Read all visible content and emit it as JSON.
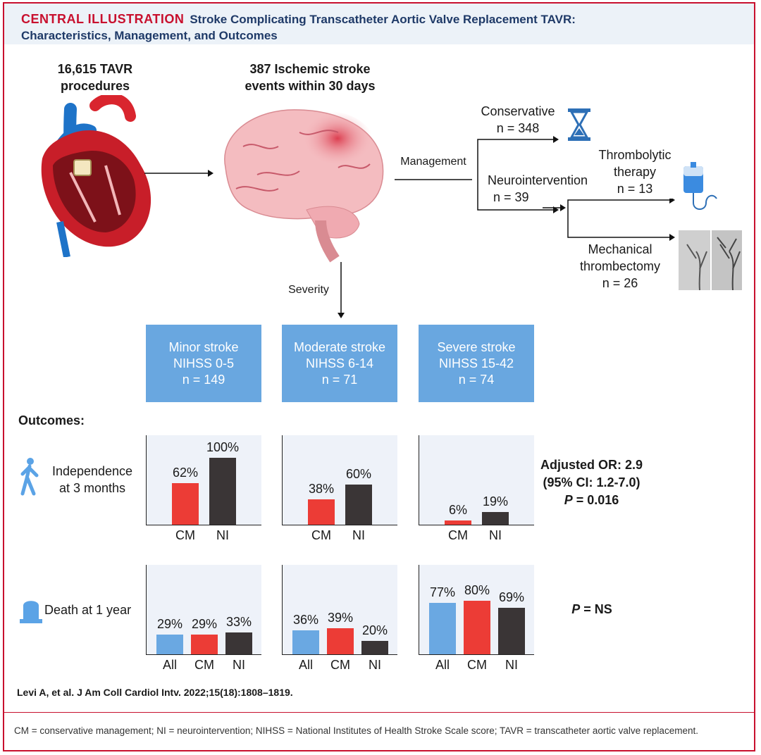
{
  "header": {
    "label": "CENTRAL ILLUSTRATION",
    "title_line1": "Stroke Complicating Transcatheter Aortic Valve Replacement TAVR:",
    "title_line2": "Characteristics, Management, and Outcomes"
  },
  "procedures": {
    "line1": "16,615 TAVR",
    "line2": "procedures"
  },
  "events": {
    "line1": "387 Ischemic stroke",
    "line2": "events within 30 days"
  },
  "management": {
    "label": "Management",
    "conservative": {
      "name": "Conservative",
      "n": "n = 348"
    },
    "neuro": {
      "name": "Neurointervention",
      "n": "n = 39"
    },
    "thrombolytic": {
      "line1": "Thrombolytic",
      "line2": "therapy",
      "n": "n = 13"
    },
    "mechanical": {
      "line1": "Mechanical",
      "line2": "thrombectomy",
      "n": "n = 26"
    }
  },
  "severity_label": "Severity",
  "severity": [
    {
      "name": "Minor stroke",
      "score": "NIHSS 0-5",
      "n": "n = 149"
    },
    {
      "name": "Moderate stroke",
      "score": "NIHSS 6-14",
      "n": "n = 71"
    },
    {
      "name": "Severe stroke",
      "score": "NIHSS 15-42",
      "n": "n = 74"
    }
  ],
  "outcomes_label": "Outcomes:",
  "independence": {
    "line1": "Independence",
    "line2": "at 3 months"
  },
  "death": {
    "label": "Death at 1 year"
  },
  "stats": {
    "independence_line1": "Adjusted OR: 2.9",
    "independence_line2": "(95% CI: 1.2-7.0)",
    "p_italic": "P",
    "independence_p": " = 0.016",
    "death_p": " = NS"
  },
  "colors": {
    "All": "#6aa8e2",
    "CM": "#ec3c36",
    "NI": "#3a3536"
  },
  "chart_data": [
    {
      "type": "bar",
      "title": "",
      "group": "Minor stroke",
      "outcome": "Independence at 3 months",
      "categories": [
        "CM",
        "NI"
      ],
      "values": [
        62,
        100
      ],
      "labels": [
        "62%",
        "100%"
      ],
      "ylim": [
        0,
        100
      ]
    },
    {
      "type": "bar",
      "title": "",
      "group": "Moderate stroke",
      "outcome": "Independence at 3 months",
      "categories": [
        "CM",
        "NI"
      ],
      "values": [
        38,
        60
      ],
      "labels": [
        "38%",
        "60%"
      ],
      "ylim": [
        0,
        100
      ]
    },
    {
      "type": "bar",
      "title": "",
      "group": "Severe stroke",
      "outcome": "Independence at 3 months",
      "categories": [
        "CM",
        "NI"
      ],
      "values": [
        6,
        19
      ],
      "labels": [
        "6%",
        "19%"
      ],
      "ylim": [
        0,
        100
      ]
    },
    {
      "type": "bar",
      "title": "",
      "group": "Minor stroke",
      "outcome": "Death at 1 year",
      "categories": [
        "All",
        "CM",
        "NI"
      ],
      "values": [
        29,
        29,
        33
      ],
      "labels": [
        "29%",
        "29%",
        "33%"
      ],
      "ylim": [
        0,
        100
      ]
    },
    {
      "type": "bar",
      "title": "",
      "group": "Moderate stroke",
      "outcome": "Death at 1 year",
      "categories": [
        "All",
        "CM",
        "NI"
      ],
      "values": [
        36,
        39,
        20
      ],
      "labels": [
        "36%",
        "39%",
        "20%"
      ],
      "ylim": [
        0,
        100
      ]
    },
    {
      "type": "bar",
      "title": "",
      "group": "Severe stroke",
      "outcome": "Death at 1 year",
      "categories": [
        "All",
        "CM",
        "NI"
      ],
      "values": [
        77,
        80,
        69
      ],
      "labels": [
        "77%",
        "80%",
        "69%"
      ],
      "ylim": [
        0,
        100
      ]
    }
  ],
  "citation": "Levi A, et al. J Am Coll Cardiol Intv. 2022;15(18):1808–1819.",
  "footer": "CM = conservative management; NI = neurointervention; NIHSS = National Institutes of Health Stroke Scale score; TAVR = transcatheter aortic valve replacement."
}
